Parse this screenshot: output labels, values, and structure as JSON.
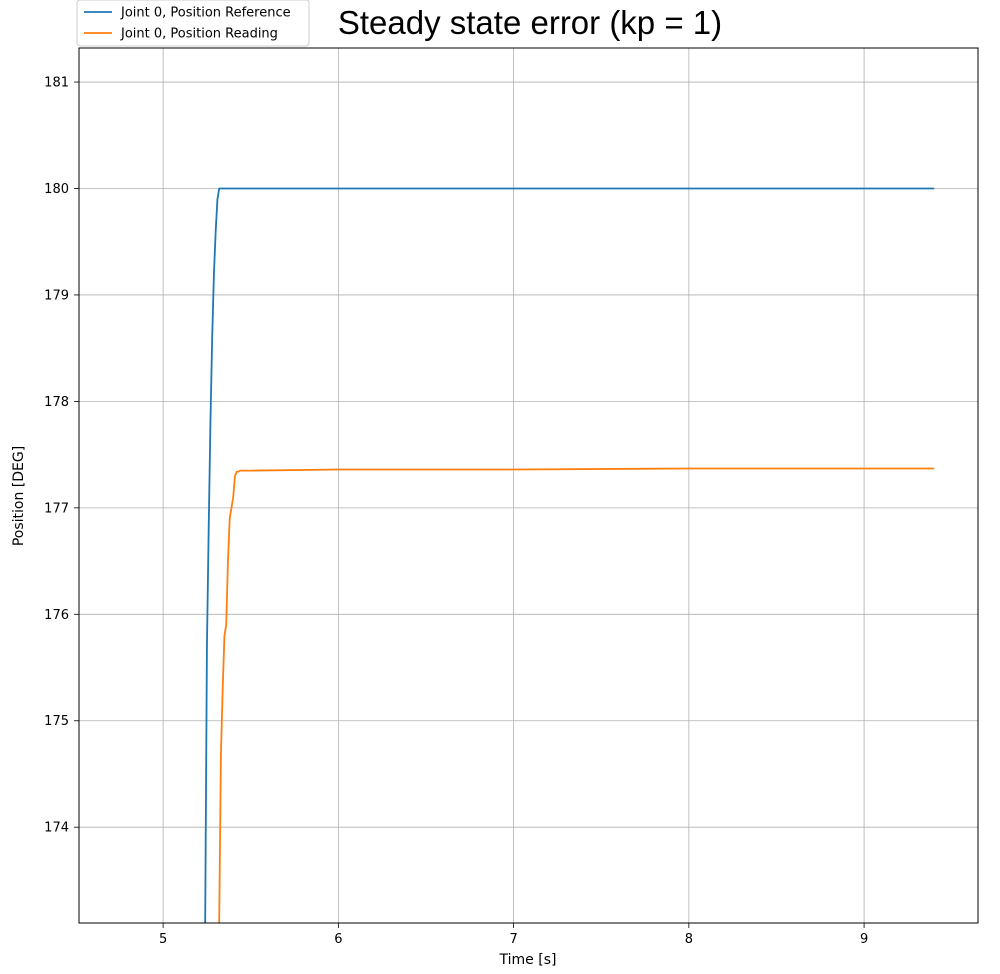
{
  "chart_data": {
    "type": "line",
    "title": "Steady state error (kp = 1)",
    "xlabel": "Time [s]",
    "ylabel": "Position [DEG]",
    "xlim": [
      4.52,
      9.65
    ],
    "ylim": [
      173.1,
      181.32
    ],
    "xticks": [
      5,
      6,
      7,
      8,
      9
    ],
    "yticks": [
      174,
      175,
      176,
      177,
      178,
      179,
      180,
      181
    ],
    "grid": true,
    "legend_position": "top-left",
    "series": [
      {
        "name": "Joint 0, Position Reference",
        "color": "#1f77b4",
        "x": [
          5.24,
          5.25,
          5.26,
          5.27,
          5.28,
          5.29,
          5.3,
          5.31,
          5.32,
          5.34,
          6.0,
          7.0,
          8.0,
          9.0,
          9.4
        ],
        "y": [
          173.1,
          175.7,
          176.8,
          177.8,
          178.6,
          179.2,
          179.6,
          179.9,
          180.0,
          180.0,
          180.0,
          180.0,
          180.0,
          180.0,
          180.0
        ]
      },
      {
        "name": "Joint 0, Position Reading",
        "color": "#ff7f0e",
        "x": [
          5.32,
          5.33,
          5.34,
          5.35,
          5.36,
          5.37,
          5.38,
          5.39,
          5.4,
          5.41,
          5.42,
          5.43,
          5.44,
          5.5,
          6.0,
          7.0,
          8.0,
          9.0,
          9.4
        ],
        "y": [
          173.1,
          174.7,
          175.3,
          175.8,
          175.9,
          176.5,
          176.9,
          177.0,
          177.1,
          177.3,
          177.34,
          177.34,
          177.35,
          177.35,
          177.36,
          177.36,
          177.37,
          177.37,
          177.37
        ]
      }
    ]
  }
}
